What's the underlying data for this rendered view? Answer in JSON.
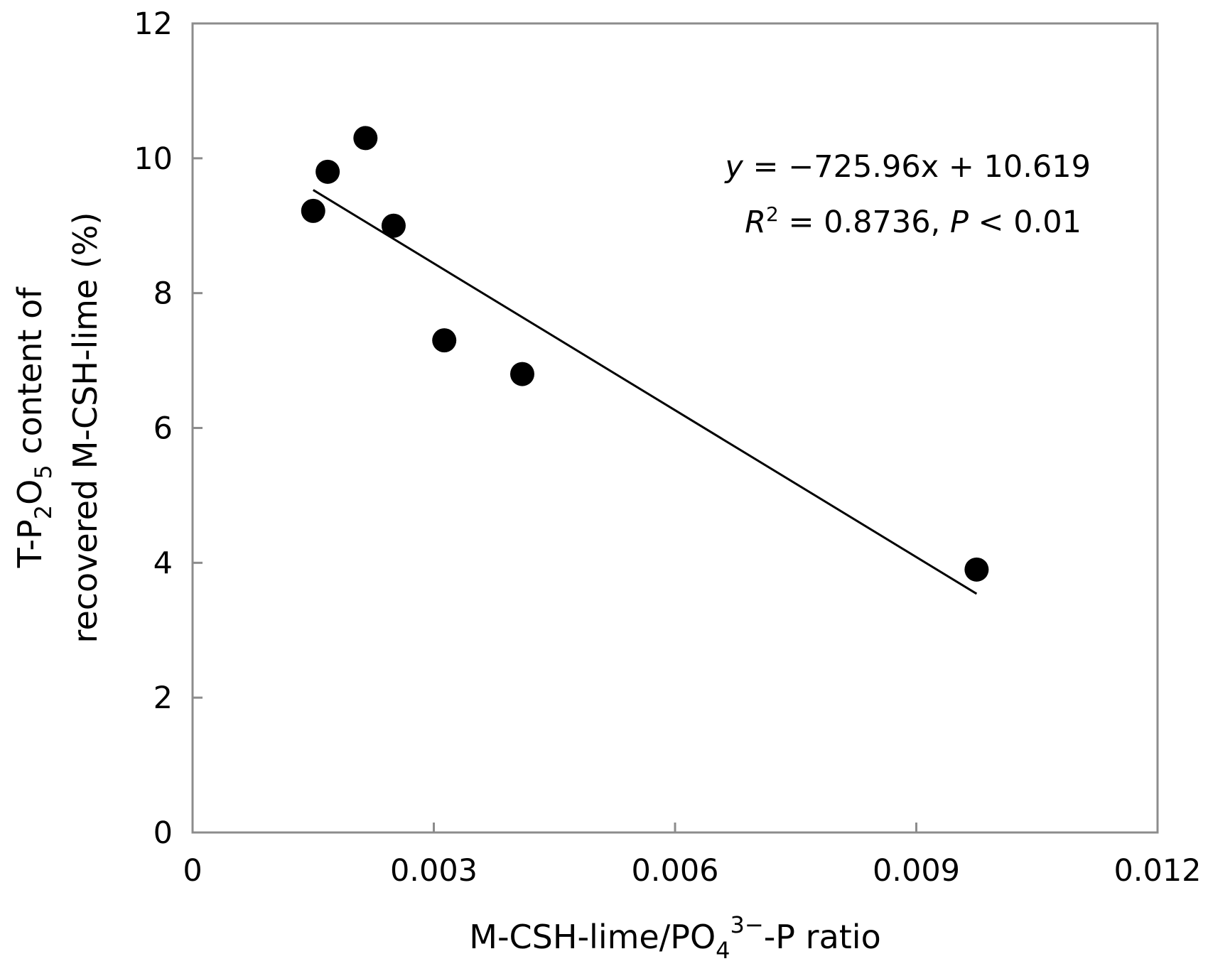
{
  "chart_data": {
    "type": "scatter",
    "title": "",
    "xlabel": {
      "main": "M-CSH-lime/PO",
      "sub": "4",
      "sup": "3−",
      "tail": "-P ratio"
    },
    "ylabel": {
      "line1_pre": "T-P",
      "line1_sub1": "2",
      "line1_mid": "O",
      "line1_sub2": "5",
      "line1_post": " content of",
      "line2": "recovered M-CSH-lime (%)"
    },
    "xlim": [
      0,
      0.012
    ],
    "ylim": [
      0,
      12
    ],
    "x_ticks": [
      "0",
      "0.003",
      "0.006",
      "0.009",
      "0.012"
    ],
    "x_tick_values": [
      0,
      0.003,
      0.006,
      0.009,
      0.012
    ],
    "y_ticks": [
      "0",
      "2",
      "4",
      "6",
      "8",
      "10",
      "12"
    ],
    "y_tick_values": [
      0,
      2,
      4,
      6,
      8,
      10,
      12
    ],
    "grid": false,
    "series": [
      {
        "x": [
          0.0015,
          0.00168,
          0.00215,
          0.0025,
          0.00313,
          0.0041,
          0.00975
        ],
        "y": [
          9.22,
          9.8,
          10.3,
          9.0,
          7.3,
          6.8,
          3.9
        ]
      }
    ],
    "trendline": {
      "slope": -725.96,
      "intercept": 10.619,
      "x_range": [
        0.0015,
        0.00975
      ]
    },
    "annotation": {
      "line1_var": "y",
      "line1_rest": " = −725.96x + 10.619",
      "line2_var": "R",
      "line2_sup": "2",
      "line2_mid": " = 0.8736, ",
      "line2_var2": "P",
      "line2_rest": " < 0.01"
    },
    "colors": {
      "points": "#000000",
      "trendline": "#000000",
      "axis_frame": "#8c8c8c",
      "text": "#000000"
    }
  }
}
